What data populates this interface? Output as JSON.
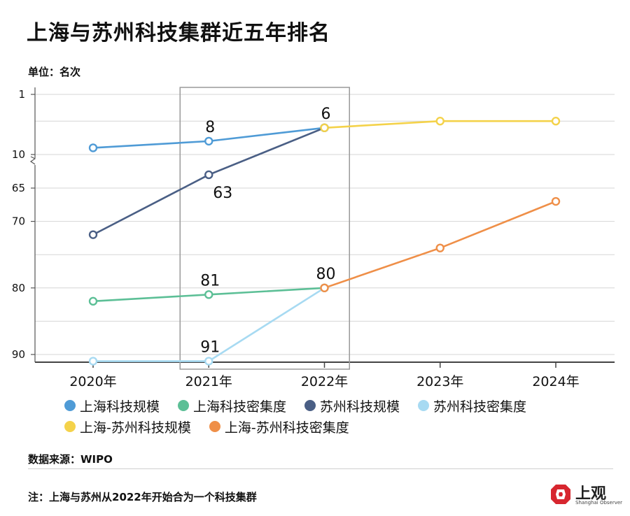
{
  "title": "上海与苏州科技集群近五年排名",
  "unit": "单位：名次",
  "source": "数据来源：WIPO",
  "note": "注：上海与苏州从2022年开始合为一个科技集群",
  "logo": {
    "text": "上观",
    "sub": "Shanghai Observer"
  },
  "chart_data": {
    "type": "line",
    "title": "上海与苏州科技集群近五年排名",
    "ylabel": "单位：名次",
    "y_inverted": true,
    "y_axis_broken": true,
    "categories": [
      "2020年",
      "2021年",
      "2022年",
      "2023年",
      "2024年"
    ],
    "y_ticks": [
      "1",
      "10",
      "65",
      "70",
      "80",
      "90"
    ],
    "grid": true,
    "legend_position": "bottom",
    "highlight_box_category": "2021年",
    "series": [
      {
        "name": "上海科技规模",
        "color": "#4f9bd6",
        "values": [
          9,
          8,
          6,
          null,
          null
        ]
      },
      {
        "name": "上海科技密集度",
        "color": "#5cbf96",
        "values": [
          82,
          81,
          80,
          null,
          null
        ]
      },
      {
        "name": "苏州科技规模",
        "color": "#4a5f85",
        "values": [
          72,
          63,
          6,
          null,
          null
        ]
      },
      {
        "name": "苏州科技密集度",
        "color": "#a7daf2",
        "values": [
          91,
          91,
          80,
          null,
          null
        ]
      },
      {
        "name": "上海-苏州科技规模",
        "color": "#f4d24a",
        "values": [
          null,
          null,
          6,
          5,
          5
        ]
      },
      {
        "name": "上海-苏州科技密集度",
        "color": "#ef8f48",
        "values": [
          null,
          null,
          80,
          74,
          67
        ]
      }
    ],
    "data_labels": [
      {
        "series": "上海科技规模",
        "category": "2021年",
        "text": "8",
        "pos": "above"
      },
      {
        "series": "上海科技规模",
        "category": "2022年",
        "text": "6",
        "pos": "above"
      },
      {
        "series": "苏州科技规模",
        "category": "2021年",
        "text": "63",
        "pos": "below"
      },
      {
        "series": "上海科技密集度",
        "category": "2021年",
        "text": "81",
        "pos": "above"
      },
      {
        "series": "上海科技密集度",
        "category": "2022年",
        "text": "80",
        "pos": "above"
      },
      {
        "series": "苏州科技密集度",
        "category": "2021年",
        "text": "91",
        "pos": "above"
      }
    ]
  }
}
